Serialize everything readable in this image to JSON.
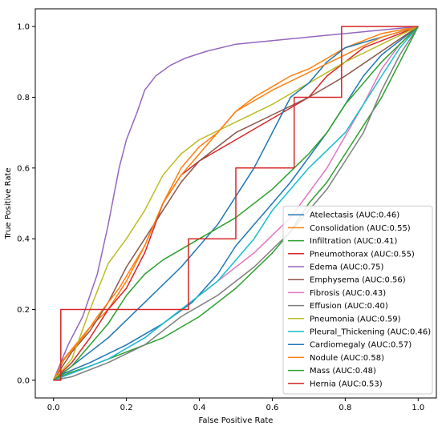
{
  "chart_data": {
    "type": "line",
    "title": "",
    "xlabel": "False Positive Rate",
    "ylabel": "True Positive Rate",
    "xlim": [
      -0.05,
      1.05
    ],
    "ylim": [
      -0.05,
      1.05
    ],
    "xticks": [
      0.0,
      0.2,
      0.4,
      0.6,
      0.8,
      1.0
    ],
    "yticks": [
      0.0,
      0.2,
      0.4,
      0.6,
      0.8,
      1.0
    ],
    "xtick_labels": [
      "0.0",
      "0.2",
      "0.4",
      "0.6",
      "0.8",
      "1.0"
    ],
    "ytick_labels": [
      "0.0",
      "0.2",
      "0.4",
      "0.6",
      "0.8",
      "1.0"
    ],
    "grid": false,
    "legend_position": "lower-right",
    "series": [
      {
        "name": "Atelectasis (AUC:0.46)",
        "color": "#1f77b4",
        "points": [
          [
            0,
            0
          ],
          [
            0.03,
            0.02
          ],
          [
            0.1,
            0.05
          ],
          [
            0.2,
            0.1
          ],
          [
            0.3,
            0.16
          ],
          [
            0.38,
            0.22
          ],
          [
            0.45,
            0.3
          ],
          [
            0.5,
            0.38
          ],
          [
            0.55,
            0.44
          ],
          [
            0.6,
            0.5
          ],
          [
            0.65,
            0.56
          ],
          [
            0.7,
            0.63
          ],
          [
            0.75,
            0.7
          ],
          [
            0.8,
            0.78
          ],
          [
            0.85,
            0.86
          ],
          [
            0.9,
            0.92
          ],
          [
            0.95,
            0.96
          ],
          [
            1,
            1
          ]
        ]
      },
      {
        "name": "Consolidation (AUC:0.55)",
        "color": "#ff7f0e",
        "points": [
          [
            0,
            0
          ],
          [
            0.02,
            0.05
          ],
          [
            0.06,
            0.1
          ],
          [
            0.1,
            0.15
          ],
          [
            0.15,
            0.2
          ],
          [
            0.2,
            0.28
          ],
          [
            0.25,
            0.38
          ],
          [
            0.3,
            0.5
          ],
          [
            0.35,
            0.6
          ],
          [
            0.4,
            0.66
          ],
          [
            0.45,
            0.7
          ],
          [
            0.5,
            0.76
          ],
          [
            0.55,
            0.8
          ],
          [
            0.6,
            0.83
          ],
          [
            0.65,
            0.86
          ],
          [
            0.7,
            0.88
          ],
          [
            0.75,
            0.91
          ],
          [
            0.8,
            0.94
          ],
          [
            0.9,
            0.98
          ],
          [
            1,
            1
          ]
        ]
      },
      {
        "name": "Infiltration (AUC:0.41)",
        "color": "#2ca02c",
        "points": [
          [
            0,
            0
          ],
          [
            0.04,
            0.02
          ],
          [
            0.1,
            0.04
          ],
          [
            0.2,
            0.08
          ],
          [
            0.3,
            0.12
          ],
          [
            0.4,
            0.18
          ],
          [
            0.5,
            0.26
          ],
          [
            0.6,
            0.36
          ],
          [
            0.65,
            0.42
          ],
          [
            0.7,
            0.5
          ],
          [
            0.75,
            0.56
          ],
          [
            0.8,
            0.64
          ],
          [
            0.85,
            0.72
          ],
          [
            0.9,
            0.8
          ],
          [
            0.95,
            0.9
          ],
          [
            1,
            1
          ]
        ]
      },
      {
        "name": "Pneumothorax (AUC:0.55)",
        "color": "#d62728",
        "points": [
          [
            0,
            0
          ],
          [
            0.05,
            0.05
          ],
          [
            0.1,
            0.12
          ],
          [
            0.15,
            0.2
          ],
          [
            0.2,
            0.26
          ],
          [
            0.25,
            0.36
          ],
          [
            0.3,
            0.5
          ],
          [
            0.35,
            0.58
          ],
          [
            0.4,
            0.62
          ],
          [
            0.5,
            0.68
          ],
          [
            0.6,
            0.74
          ],
          [
            0.7,
            0.8
          ],
          [
            0.75,
            0.86
          ],
          [
            0.8,
            0.9
          ],
          [
            0.85,
            0.94
          ],
          [
            0.9,
            0.96
          ],
          [
            1,
            1
          ]
        ]
      },
      {
        "name": "Edema (AUC:0.75)",
        "color": "#9467bd",
        "points": [
          [
            0,
            0
          ],
          [
            0.04,
            0.1
          ],
          [
            0.08,
            0.18
          ],
          [
            0.1,
            0.24
          ],
          [
            0.12,
            0.3
          ],
          [
            0.15,
            0.44
          ],
          [
            0.18,
            0.6
          ],
          [
            0.2,
            0.68
          ],
          [
            0.23,
            0.76
          ],
          [
            0.25,
            0.82
          ],
          [
            0.28,
            0.86
          ],
          [
            0.32,
            0.89
          ],
          [
            0.36,
            0.91
          ],
          [
            0.42,
            0.93
          ],
          [
            0.5,
            0.95
          ],
          [
            0.6,
            0.96
          ],
          [
            0.7,
            0.97
          ],
          [
            0.8,
            0.98
          ],
          [
            0.9,
            0.99
          ],
          [
            1,
            1
          ]
        ]
      },
      {
        "name": "Emphysema (AUC:0.56)",
        "color": "#8c564b",
        "points": [
          [
            0,
            0
          ],
          [
            0.05,
            0.08
          ],
          [
            0.1,
            0.14
          ],
          [
            0.15,
            0.22
          ],
          [
            0.2,
            0.32
          ],
          [
            0.25,
            0.4
          ],
          [
            0.3,
            0.48
          ],
          [
            0.35,
            0.56
          ],
          [
            0.4,
            0.62
          ],
          [
            0.5,
            0.7
          ],
          [
            0.6,
            0.75
          ],
          [
            0.7,
            0.8
          ],
          [
            0.8,
            0.86
          ],
          [
            0.9,
            0.93
          ],
          [
            1,
            1
          ]
        ]
      },
      {
        "name": "Fibrosis (AUC:0.43)",
        "color": "#e377c2",
        "points": [
          [
            0,
            0
          ],
          [
            0.05,
            0.02
          ],
          [
            0.15,
            0.06
          ],
          [
            0.25,
            0.12
          ],
          [
            0.35,
            0.2
          ],
          [
            0.45,
            0.28
          ],
          [
            0.55,
            0.36
          ],
          [
            0.65,
            0.46
          ],
          [
            0.75,
            0.6
          ],
          [
            0.85,
            0.78
          ],
          [
            0.9,
            0.88
          ],
          [
            0.95,
            0.95
          ],
          [
            1,
            1
          ]
        ]
      },
      {
        "name": "Effusion (AUC:0.40)",
        "color": "#7f7f7f",
        "points": [
          [
            0,
            0
          ],
          [
            0.05,
            0.01
          ],
          [
            0.15,
            0.05
          ],
          [
            0.25,
            0.1
          ],
          [
            0.35,
            0.18
          ],
          [
            0.45,
            0.24
          ],
          [
            0.55,
            0.32
          ],
          [
            0.65,
            0.42
          ],
          [
            0.75,
            0.54
          ],
          [
            0.8,
            0.62
          ],
          [
            0.85,
            0.7
          ],
          [
            0.9,
            0.82
          ],
          [
            0.95,
            0.92
          ],
          [
            1,
            1
          ]
        ]
      },
      {
        "name": "Pneumonia (AUC:0.59)",
        "color": "#bcbd22",
        "points": [
          [
            0,
            0
          ],
          [
            0.05,
            0.06
          ],
          [
            0.1,
            0.2
          ],
          [
            0.15,
            0.33
          ],
          [
            0.2,
            0.4
          ],
          [
            0.25,
            0.48
          ],
          [
            0.3,
            0.58
          ],
          [
            0.35,
            0.64
          ],
          [
            0.4,
            0.68
          ],
          [
            0.5,
            0.73
          ],
          [
            0.6,
            0.78
          ],
          [
            0.7,
            0.84
          ],
          [
            0.8,
            0.9
          ],
          [
            0.9,
            0.95
          ],
          [
            1,
            1
          ]
        ]
      },
      {
        "name": "Pleural_Thickening (AUC:0.46)",
        "color": "#17becf",
        "points": [
          [
            0,
            0
          ],
          [
            0.05,
            0.02
          ],
          [
            0.15,
            0.06
          ],
          [
            0.25,
            0.12
          ],
          [
            0.35,
            0.2
          ],
          [
            0.45,
            0.28
          ],
          [
            0.55,
            0.4
          ],
          [
            0.6,
            0.48
          ],
          [
            0.65,
            0.54
          ],
          [
            0.7,
            0.6
          ],
          [
            0.8,
            0.7
          ],
          [
            0.85,
            0.78
          ],
          [
            0.9,
            0.86
          ],
          [
            0.95,
            0.94
          ],
          [
            1,
            1
          ]
        ]
      },
      {
        "name": "Cardiomegaly (AUC:0.57)",
        "color": "#1f77b4",
        "points": [
          [
            0,
            0
          ],
          [
            0.05,
            0.04
          ],
          [
            0.15,
            0.12
          ],
          [
            0.25,
            0.22
          ],
          [
            0.35,
            0.32
          ],
          [
            0.45,
            0.44
          ],
          [
            0.5,
            0.52
          ],
          [
            0.55,
            0.6
          ],
          [
            0.6,
            0.7
          ],
          [
            0.65,
            0.8
          ],
          [
            0.7,
            0.84
          ],
          [
            0.75,
            0.9
          ],
          [
            0.8,
            0.94
          ],
          [
            0.9,
            0.97
          ],
          [
            1,
            1
          ]
        ]
      },
      {
        "name": "Nodule (AUC:0.58)",
        "color": "#ff7f0e",
        "points": [
          [
            0,
            0
          ],
          [
            0.03,
            0.06
          ],
          [
            0.08,
            0.12
          ],
          [
            0.12,
            0.18
          ],
          [
            0.18,
            0.26
          ],
          [
            0.25,
            0.38
          ],
          [
            0.3,
            0.5
          ],
          [
            0.35,
            0.58
          ],
          [
            0.4,
            0.64
          ],
          [
            0.45,
            0.7
          ],
          [
            0.5,
            0.76
          ],
          [
            0.6,
            0.82
          ],
          [
            0.7,
            0.87
          ],
          [
            0.8,
            0.92
          ],
          [
            0.9,
            0.97
          ],
          [
            1,
            1
          ]
        ]
      },
      {
        "name": "Mass (AUC:0.48)",
        "color": "#2ca02c",
        "points": [
          [
            0,
            0
          ],
          [
            0.05,
            0.04
          ],
          [
            0.1,
            0.1
          ],
          [
            0.15,
            0.16
          ],
          [
            0.2,
            0.24
          ],
          [
            0.25,
            0.3
          ],
          [
            0.3,
            0.34
          ],
          [
            0.4,
            0.4
          ],
          [
            0.5,
            0.46
          ],
          [
            0.6,
            0.54
          ],
          [
            0.7,
            0.64
          ],
          [
            0.75,
            0.7
          ],
          [
            0.8,
            0.78
          ],
          [
            0.85,
            0.84
          ],
          [
            0.9,
            0.9
          ],
          [
            0.95,
            0.95
          ],
          [
            1,
            1
          ]
        ]
      },
      {
        "name": "Hernia (AUC:0.53)",
        "color": "#d62728",
        "points": [
          [
            0,
            0
          ],
          [
            0.02,
            0
          ],
          [
            0.02,
            0.2
          ],
          [
            0.37,
            0.2
          ],
          [
            0.37,
            0.4
          ],
          [
            0.5,
            0.4
          ],
          [
            0.5,
            0.6
          ],
          [
            0.66,
            0.6
          ],
          [
            0.66,
            0.8
          ],
          [
            0.79,
            0.8
          ],
          [
            0.79,
            1
          ],
          [
            1,
            1
          ]
        ]
      }
    ]
  }
}
